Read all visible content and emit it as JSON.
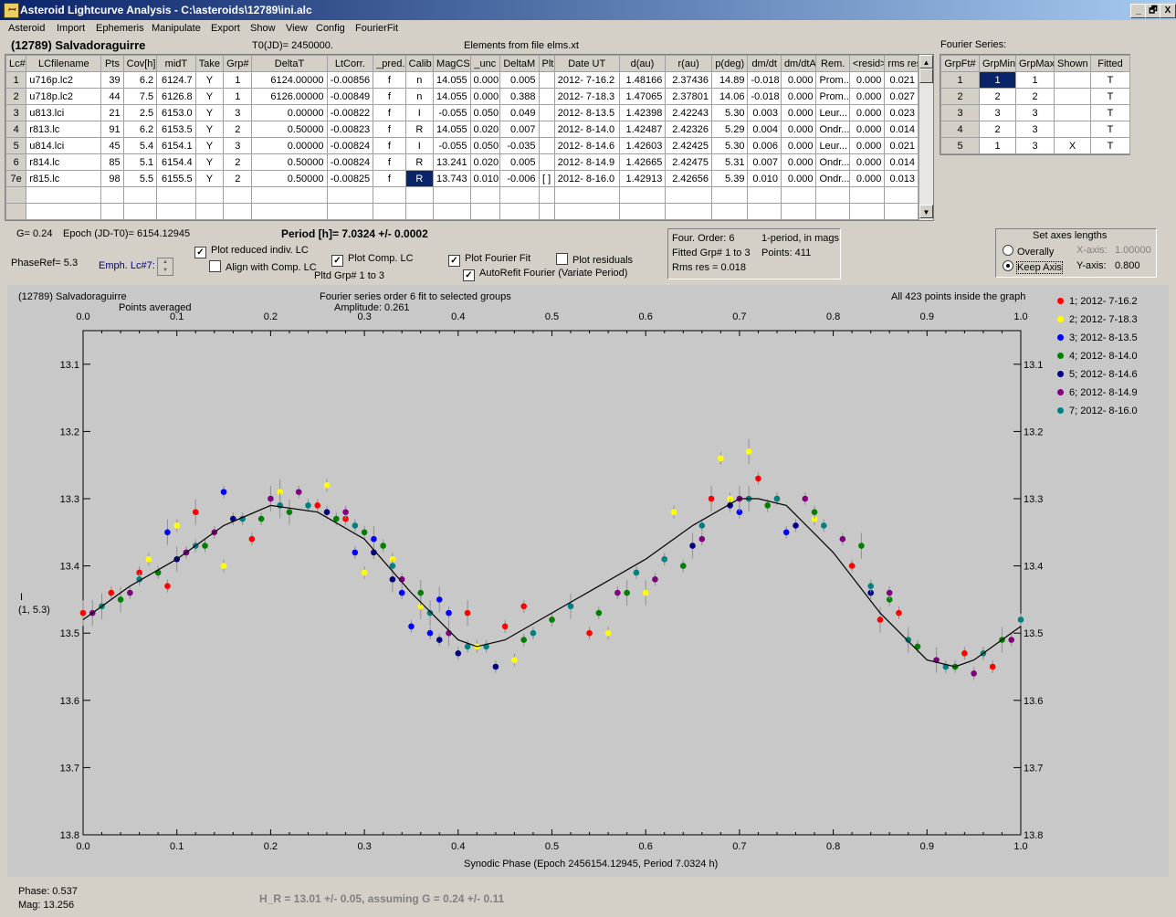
{
  "window": {
    "title": "Asteroid Lightcurve Analysis - C:\\asteroids\\12789\\ini.alc",
    "minimize": "_",
    "maximize": "🗗",
    "close": "X"
  },
  "menu": [
    "Asteroid",
    "Import",
    "Ephemeris",
    "Manipulate",
    "Export",
    "Show",
    "View",
    "Config",
    "FourierFit"
  ],
  "header": {
    "asteroid": "(12789) Salvadoraguirre",
    "t0": "T0(JD)= 2450000.",
    "elements": "Elements from file elms.xt"
  },
  "lc_table": {
    "columns": [
      "Lc#",
      "LCfilename",
      "Pts",
      "Cov[h]",
      "midT",
      "Take",
      "Grp#",
      "DeltaT",
      "LtCorr.",
      "_pred.",
      "Calib.",
      "MagCS",
      "_unc",
      "DeltaM",
      "Plt",
      "Date UT",
      "d(au)",
      "r(au)",
      "p(deg)",
      "dm/dt",
      "dm/dtA",
      "Rem.",
      "<resid>",
      "rms res"
    ],
    "rows": [
      [
        "1",
        "u716p.lc2",
        "39",
        "6.2",
        "6124.7",
        "Y",
        "1",
        "6124.00000",
        "-0.00856",
        "f",
        "n",
        "14.055",
        "0.000",
        "0.005",
        "",
        "2012- 7-16.2",
        "1.48166",
        "2.37436",
        "14.89",
        "-0.018",
        "0.000",
        "Prom...",
        "0.000",
        "0.021"
      ],
      [
        "2",
        "u718p.lc2",
        "44",
        "7.5",
        "6126.8",
        "Y",
        "1",
        "6126.00000",
        "-0.00849",
        "f",
        "n",
        "14.055",
        "0.000",
        "0.388",
        "",
        "2012- 7-18.3",
        "1.47065",
        "2.37801",
        "14.06",
        "-0.018",
        "0.000",
        "Prom...",
        "0.000",
        "0.027"
      ],
      [
        "3",
        "u813.lci",
        "21",
        "2.5",
        "6153.0",
        "Y",
        "3",
        "0.00000",
        "-0.00822",
        "f",
        "I",
        "-0.055",
        "0.050",
        "0.049",
        "",
        "2012- 8-13.5",
        "1.42398",
        "2.42243",
        "5.30",
        "0.003",
        "0.000",
        "Leur...",
        "0.000",
        "0.023"
      ],
      [
        "4",
        "r813.lc",
        "91",
        "6.2",
        "6153.5",
        "Y",
        "2",
        "0.50000",
        "-0.00823",
        "f",
        "R",
        "14.055",
        "0.020",
        "0.007",
        "",
        "2012- 8-14.0",
        "1.42487",
        "2.42326",
        "5.29",
        "0.004",
        "0.000",
        "Ondr...",
        "0.000",
        "0.014"
      ],
      [
        "5",
        "u814.lci",
        "45",
        "5.4",
        "6154.1",
        "Y",
        "3",
        "0.00000",
        "-0.00824",
        "f",
        "I",
        "-0.055",
        "0.050",
        "-0.035",
        "",
        "2012- 8-14.6",
        "1.42603",
        "2.42425",
        "5.30",
        "0.006",
        "0.000",
        "Leur...",
        "0.000",
        "0.021"
      ],
      [
        "6",
        "r814.lc",
        "85",
        "5.1",
        "6154.4",
        "Y",
        "2",
        "0.50000",
        "-0.00824",
        "f",
        "R",
        "13.241",
        "0.020",
        "0.005",
        "",
        "2012- 8-14.9",
        "1.42665",
        "2.42475",
        "5.31",
        "0.007",
        "0.000",
        "Ondr...",
        "0.000",
        "0.014"
      ],
      [
        "7e",
        "r815.lc",
        "98",
        "5.5",
        "6155.5",
        "Y",
        "2",
        "0.50000",
        "-0.00825",
        "f",
        "R",
        "13.743",
        "0.010",
        "-0.006",
        "[ ]",
        "2012- 8-16.0",
        "1.42913",
        "2.42656",
        "5.39",
        "0.010",
        "0.000",
        "Ondr...",
        "0.000",
        "0.013"
      ]
    ]
  },
  "fourier_series": {
    "title": "Fourier Series:",
    "columns": [
      "GrpFt#",
      "GrpMin",
      "GrpMax",
      "Shown",
      "Fitted"
    ],
    "rows": [
      [
        "1",
        "1",
        "1",
        "",
        "T"
      ],
      [
        "2",
        "2",
        "2",
        "",
        "T"
      ],
      [
        "3",
        "3",
        "3",
        "",
        "T"
      ],
      [
        "4",
        "2",
        "3",
        "",
        "T"
      ],
      [
        "5",
        "1",
        "3",
        "X",
        "T"
      ]
    ]
  },
  "controls": {
    "g": "G= 0.24",
    "epoch": "Epoch (JD-T0)= 6154.12945",
    "period": "Period [h]= 7.0324 +/- 0.0002",
    "phaseref": "PhaseRef= 5.3",
    "emph": "Emph. Lc#7:",
    "plot_reduced": "Plot reduced indiv. LC",
    "align_comp": "Align with Comp. LC",
    "plot_comp": "Plot Comp. LC",
    "pltd_grp": "Pltd Grp#  1  to  3",
    "plot_fourier": "Plot Fourier Fit",
    "autorefit": "AutoRefit Fourier (Variate Period)",
    "plot_residuals": "Plot residuals"
  },
  "fit_info": {
    "order": "Four. Order:  6",
    "period_type": "1-period, in mags",
    "fitted": "Fitted Grp# 1 to 3",
    "points": "Points: 411",
    "rms": "Rms res     = 0.018"
  },
  "axes_panel": {
    "title": "Set axes lengths",
    "overally": "Overally",
    "keep_axis": "Keep Axis",
    "xaxis_label": "X-axis:",
    "xaxis_value": "1.00000",
    "yaxis_label": "Y-axis:",
    "yaxis_value": "0.800"
  },
  "graph": {
    "name": "(12789) Salvadoraguirre",
    "averaged": "Points averaged",
    "fourier_title": "Fourier series order 6 fit to selected groups",
    "amplitude": "Amplitude: 0.261",
    "inside": "All 423 points inside the graph",
    "ylabel1": "I",
    "ylabel2": "(1, 5.3)",
    "xlabel": "Synodic Phase (Epoch 2456154.12945, Period 7.0324 h)",
    "legend": [
      {
        "label": "1; 2012- 7-16.2",
        "color": "#ff0000"
      },
      {
        "label": "2; 2012- 7-18.3",
        "color": "#ffff00"
      },
      {
        "label": "3; 2012- 8-13.5",
        "color": "#0000ff"
      },
      {
        "label": "4; 2012- 8-14.0",
        "color": "#008000"
      },
      {
        "label": "5; 2012- 8-14.6",
        "color": "#000080"
      },
      {
        "label": "6; 2012- 8-14.9",
        "color": "#800080"
      },
      {
        "label": "7; 2012- 8-16.0",
        "color": "#008080"
      }
    ]
  },
  "chart_data": {
    "type": "scatter",
    "title": "Fourier series order 6 fit to selected groups",
    "xlabel": "Synodic Phase (Epoch 2456154.12945, Period 7.0324 h)",
    "ylabel": "I (1, 5.3)",
    "xlim": [
      0.0,
      1.0
    ],
    "ylim": [
      13.8,
      13.0
    ],
    "x_ticks": [
      "0.0",
      "0.1",
      "0.2",
      "0.3",
      "0.4",
      "0.5",
      "0.6",
      "0.7",
      "0.8",
      "0.9",
      "1.0"
    ],
    "y_ticks": [
      "13.1",
      "13.2",
      "13.3",
      "13.4",
      "13.5",
      "13.6",
      "13.7",
      "13.8"
    ],
    "fourier_fit": {
      "x": [
        0.0,
        0.05,
        0.1,
        0.15,
        0.2,
        0.25,
        0.3,
        0.35,
        0.4,
        0.42,
        0.45,
        0.5,
        0.55,
        0.6,
        0.65,
        0.7,
        0.72,
        0.75,
        0.8,
        0.85,
        0.9,
        0.93,
        0.95,
        1.0
      ],
      "y": [
        13.48,
        13.43,
        13.39,
        13.34,
        13.31,
        13.32,
        13.36,
        13.44,
        13.51,
        13.52,
        13.51,
        13.47,
        13.43,
        13.39,
        13.34,
        13.3,
        13.3,
        13.31,
        13.38,
        13.47,
        13.54,
        13.55,
        13.54,
        13.49
      ]
    },
    "series": [
      {
        "name": "1; 2012- 7-16.2",
        "x": [
          0.0,
          0.03,
          0.06,
          0.09,
          0.12,
          0.18,
          0.25,
          0.28,
          0.41,
          0.45,
          0.47,
          0.54,
          0.67,
          0.72,
          0.74,
          0.82,
          0.85,
          0.87,
          0.94,
          0.97
        ],
        "y": [
          13.47,
          13.44,
          13.41,
          13.43,
          13.32,
          13.36,
          13.31,
          13.33,
          13.47,
          13.49,
          13.46,
          13.5,
          13.3,
          13.27,
          13.3,
          13.4,
          13.48,
          13.47,
          13.53,
          13.55
        ]
      },
      {
        "name": "2; 2012- 7-18.3",
        "x": [
          0.02,
          0.07,
          0.1,
          0.15,
          0.21,
          0.26,
          0.3,
          0.33,
          0.36,
          0.42,
          0.46,
          0.56,
          0.6,
          0.63,
          0.68,
          0.69,
          0.71,
          0.78,
          0.88,
          0.96
        ],
        "y": [
          13.46,
          13.39,
          13.34,
          13.4,
          13.29,
          13.28,
          13.41,
          13.39,
          13.46,
          13.52,
          13.54,
          13.5,
          13.44,
          13.32,
          13.24,
          13.3,
          13.23,
          13.33,
          13.51,
          13.53
        ]
      },
      {
        "name": "3; 2012- 8-13.5",
        "x": [
          0.09,
          0.11,
          0.15,
          0.29,
          0.31,
          0.34,
          0.35,
          0.37,
          0.38,
          0.39,
          0.7,
          0.75
        ],
        "y": [
          13.35,
          13.38,
          13.29,
          13.38,
          13.36,
          13.44,
          13.49,
          13.5,
          13.45,
          13.47,
          13.32,
          13.35
        ]
      },
      {
        "name": "4; 2012- 8-14.0",
        "x": [
          0.04,
          0.08,
          0.13,
          0.19,
          0.22,
          0.27,
          0.3,
          0.32,
          0.36,
          0.47,
          0.5,
          0.55,
          0.58,
          0.64,
          0.73,
          0.78,
          0.83,
          0.86,
          0.89,
          0.93,
          0.98
        ],
        "y": [
          13.45,
          13.41,
          13.37,
          13.33,
          13.32,
          13.33,
          13.35,
          13.37,
          13.44,
          13.51,
          13.48,
          13.47,
          13.44,
          13.4,
          13.31,
          13.32,
          13.37,
          13.45,
          13.52,
          13.55,
          13.51
        ]
      },
      {
        "name": "5; 2012- 8-14.6",
        "x": [
          0.1,
          0.16,
          0.26,
          0.31,
          0.33,
          0.38,
          0.4,
          0.44,
          0.65,
          0.69,
          0.76,
          0.84
        ],
        "y": [
          13.39,
          13.33,
          13.32,
          13.38,
          13.42,
          13.51,
          13.53,
          13.55,
          13.37,
          13.31,
          13.34,
          13.44
        ]
      },
      {
        "name": "6; 2012- 8-14.9",
        "x": [
          0.01,
          0.05,
          0.11,
          0.14,
          0.2,
          0.23,
          0.28,
          0.34,
          0.39,
          0.57,
          0.61,
          0.66,
          0.7,
          0.77,
          0.81,
          0.86,
          0.91,
          0.95,
          0.99
        ],
        "y": [
          13.47,
          13.44,
          13.38,
          13.35,
          13.3,
          13.29,
          13.32,
          13.42,
          13.5,
          13.44,
          13.42,
          13.36,
          13.3,
          13.3,
          13.36,
          13.44,
          13.54,
          13.56,
          13.51
        ]
      },
      {
        "name": "7; 2012- 8-16.0",
        "x": [
          0.02,
          0.06,
          0.12,
          0.17,
          0.21,
          0.24,
          0.29,
          0.33,
          0.37,
          0.41,
          0.43,
          0.48,
          0.52,
          0.59,
          0.62,
          0.66,
          0.71,
          0.74,
          0.79,
          0.84,
          0.88,
          0.92,
          0.96,
          1.0
        ],
        "y": [
          13.46,
          13.42,
          13.37,
          13.33,
          13.31,
          13.31,
          13.34,
          13.4,
          13.47,
          13.52,
          13.52,
          13.5,
          13.46,
          13.41,
          13.39,
          13.34,
          13.3,
          13.3,
          13.34,
          13.43,
          13.51,
          13.55,
          13.53,
          13.48
        ]
      }
    ]
  },
  "status": {
    "phase": "Phase:  0.537",
    "mag": "Mag:    13.256",
    "h_r": "H_R = 13.01 +/- 0.05, assuming G = 0.24 +/- 0.11"
  }
}
